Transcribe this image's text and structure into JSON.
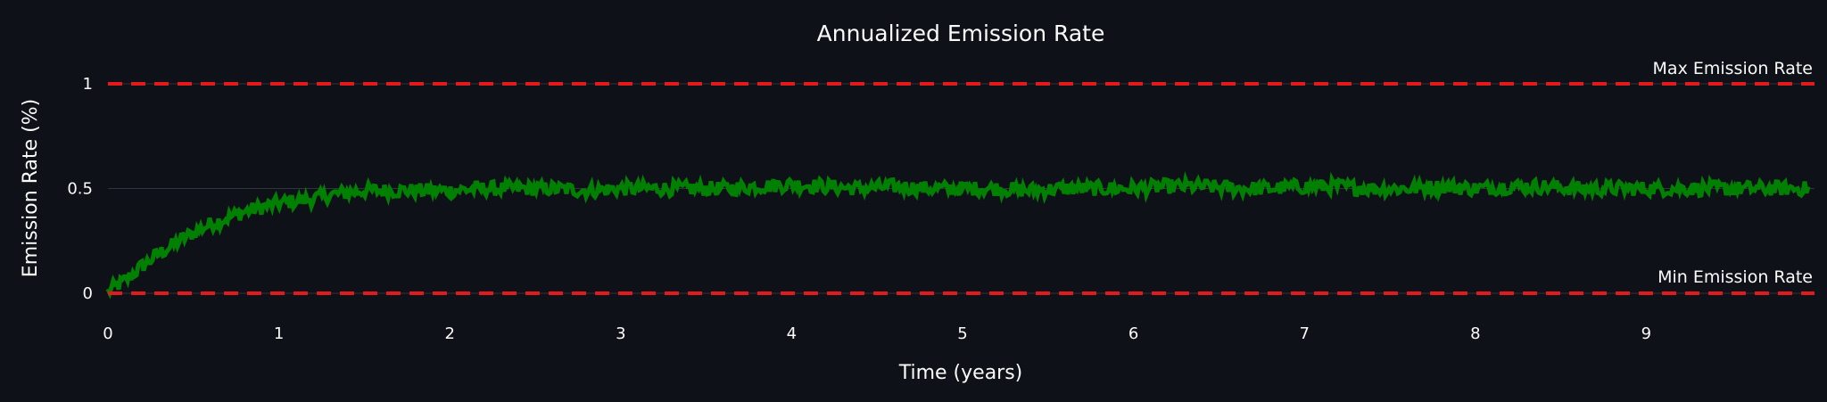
{
  "colors": {
    "background": "#0e1117",
    "series": "#008000",
    "threshold": "#e31a1c",
    "grid": "#31333f",
    "text": "#fafafa"
  },
  "chart_data": {
    "type": "line",
    "title": "Annualized Emission Rate",
    "xlabel": "Time (years)",
    "ylabel": "Emission Rate (%)",
    "xlim": [
      0,
      9.95
    ],
    "ylim": [
      0,
      1
    ],
    "x_ticks": [
      "0",
      "1",
      "2",
      "3",
      "4",
      "5",
      "6",
      "7",
      "8",
      "9"
    ],
    "y_ticks": [
      "0",
      "0.5",
      "1"
    ],
    "grid": true,
    "series": [
      {
        "name": "",
        "x": [
          0,
          0.1,
          0.2,
          0.3,
          0.4,
          0.5,
          0.6,
          0.7,
          0.8,
          0.9,
          1.0,
          1.1,
          1.2,
          1.3,
          1.4,
          1.5,
          1.6,
          1.8,
          2.0,
          2.2,
          2.4,
          2.6,
          2.8,
          3.0,
          3.2,
          3.4,
          3.6,
          3.8,
          4.0,
          4.2,
          4.4,
          4.6,
          4.8,
          5.0,
          5.2,
          5.4,
          5.6,
          5.8,
          6.0,
          6.2,
          6.4,
          6.6,
          6.8,
          7.0,
          7.2,
          7.4,
          7.6,
          7.8,
          8.0,
          8.2,
          8.4,
          8.6,
          8.8,
          9.0,
          9.2,
          9.4,
          9.6,
          9.8,
          9.95
        ],
        "y": [
          0.01,
          0.06,
          0.13,
          0.19,
          0.24,
          0.29,
          0.33,
          0.36,
          0.39,
          0.41,
          0.43,
          0.44,
          0.45,
          0.47,
          0.48,
          0.49,
          0.49,
          0.49,
          0.49,
          0.5,
          0.5,
          0.5,
          0.49,
          0.5,
          0.5,
          0.5,
          0.5,
          0.51,
          0.52,
          0.51,
          0.5,
          0.51,
          0.5,
          0.5,
          0.5,
          0.49,
          0.5,
          0.5,
          0.5,
          0.51,
          0.51,
          0.5,
          0.5,
          0.51,
          0.51,
          0.5,
          0.5,
          0.51,
          0.5,
          0.51,
          0.51,
          0.5,
          0.5,
          0.5,
          0.5,
          0.5,
          0.5,
          0.5,
          0.5
        ]
      }
    ],
    "annotations": [
      {
        "label": "Max Emission Rate",
        "y": 1
      },
      {
        "label": "Min Emission Rate",
        "y": 0
      }
    ]
  }
}
